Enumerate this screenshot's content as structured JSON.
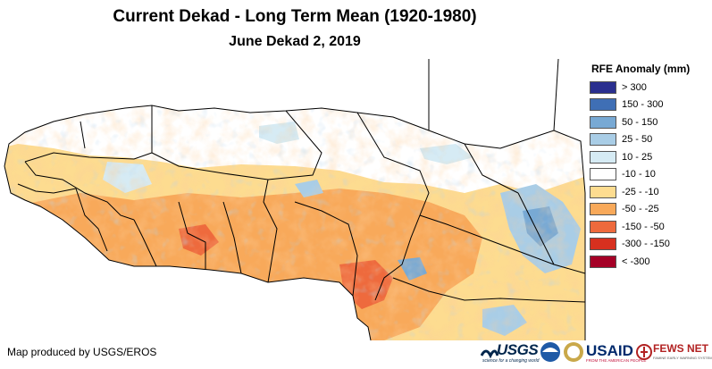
{
  "title": "Current Dekad - Long Term Mean (1920-1980)",
  "subtitle": "June Dekad 2, 2019",
  "legend": {
    "title": "RFE Anomaly (mm)",
    "items": [
      {
        "label": "> 300",
        "color": "#2a2f8f"
      },
      {
        "label": "150 - 300",
        "color": "#3f6fb5"
      },
      {
        "label": "50 - 150",
        "color": "#78a9d4"
      },
      {
        "label": "25 - 50",
        "color": "#a9cde6"
      },
      {
        "label": "10 - 25",
        "color": "#d6ebf4"
      },
      {
        "label": "-10 - 10",
        "color": "#ffffff"
      },
      {
        "label": "-25 - -10",
        "color": "#fddc90"
      },
      {
        "label": "-50 - -25",
        "color": "#f8a95a"
      },
      {
        "label": "-150 - -50",
        "color": "#ee6a3d"
      },
      {
        "label": "-300 - -150",
        "color": "#d7301f"
      },
      {
        "label": "< -300",
        "color": "#a50026"
      }
    ]
  },
  "credit": "Map produced by USGS/EROS",
  "logos": {
    "usgs": "USGS",
    "usgs_tagline": "science for a changing world",
    "usaid": "USAID",
    "usaid_tagline": "FROM THE AMERICAN PEOPLE",
    "fews": "FEWS NET",
    "fews_tagline": "FAMINE EARLY WARNING SYSTEMS NETWORK"
  }
}
